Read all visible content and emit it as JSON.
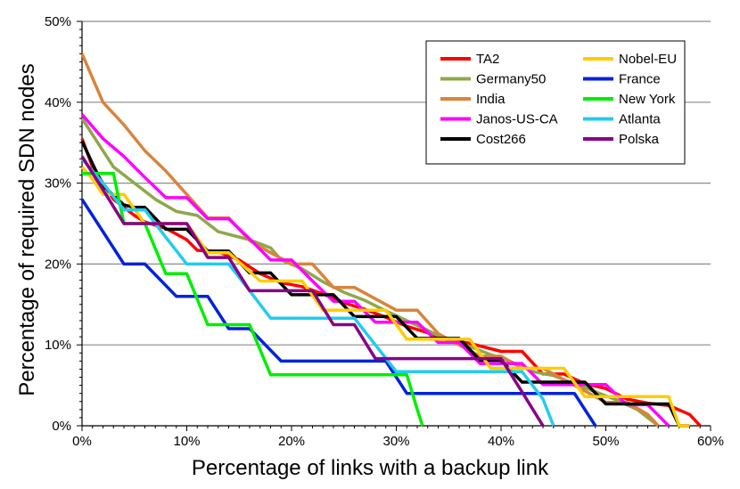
{
  "chart_data": {
    "type": "line",
    "xlabel": "Percentage of links with a backup link",
    "ylabel": "Percentage of required SDN nodes",
    "xlim": [
      0,
      60
    ],
    "ylim": [
      0,
      50
    ],
    "x_ticks": [
      "0%",
      "10%",
      "20%",
      "30%",
      "40%",
      "50%",
      "60%"
    ],
    "y_ticks": [
      "0%",
      "10%",
      "20%",
      "30%",
      "40%",
      "50%"
    ],
    "grid": "horizontal",
    "legend_position": "top-right",
    "series": [
      {
        "name": "TA2",
        "color": "#ff0000",
        "x": [
          0,
          1,
          2,
          3,
          4,
          5,
          6,
          8,
          10,
          11,
          13,
          15,
          17,
          19,
          21,
          23,
          25,
          27,
          29,
          31,
          33,
          35,
          37,
          40,
          42,
          44,
          46,
          48,
          50,
          52,
          54,
          56,
          58,
          59
        ],
        "y": [
          35.5,
          32,
          30,
          28,
          27,
          26,
          25.2,
          24.4,
          23,
          21.7,
          21.5,
          20.5,
          18.8,
          17.7,
          17.2,
          16.3,
          15.2,
          14.4,
          13.4,
          12.3,
          11.5,
          10.6,
          10.2,
          9.2,
          9.2,
          6.4,
          6.4,
          5.2,
          4.6,
          3.3,
          2.8,
          2.5,
          1.4,
          0
        ]
      },
      {
        "name": "Germany50",
        "color": "#8ea84a",
        "x": [
          0,
          2,
          3,
          5,
          7,
          9,
          11,
          13,
          16,
          18,
          19,
          21,
          23,
          25,
          27,
          29,
          31,
          33,
          35,
          37,
          39,
          41,
          43,
          45,
          47,
          49,
          51,
          53,
          54,
          55
        ],
        "y": [
          38,
          34,
          32,
          30,
          28,
          26.5,
          26,
          24,
          23,
          22,
          20.5,
          19.4,
          17.8,
          16.5,
          15.5,
          14.2,
          13,
          11.8,
          10.5,
          9.8,
          8.8,
          7.9,
          6.7,
          6.2,
          5.2,
          4.2,
          3.2,
          2,
          1,
          0
        ]
      },
      {
        "name": "India",
        "color": "#d9843b",
        "x": [
          0,
          2,
          4,
          6,
          8,
          10,
          12,
          14,
          16,
          18,
          20,
          22,
          24,
          26,
          28,
          30,
          32,
          34,
          36,
          38,
          40,
          42,
          44,
          46,
          48,
          50,
          52,
          54,
          55
        ],
        "y": [
          46,
          40,
          37.2,
          34,
          31.5,
          28.6,
          25.7,
          25.7,
          22.9,
          21.4,
          20,
          20,
          17.1,
          17.1,
          15.7,
          14.3,
          14.3,
          11.4,
          10,
          8.6,
          8.6,
          7.1,
          7.1,
          5.7,
          4.3,
          2.9,
          2.9,
          1.4,
          0
        ]
      },
      {
        "name": "Janos-US-CA",
        "color": "#ff00ff",
        "x": [
          0,
          2,
          4,
          6,
          8,
          10,
          12,
          14,
          16,
          18,
          20,
          22,
          24,
          26,
          28,
          30,
          32,
          34,
          36,
          38,
          40,
          42,
          44,
          46,
          48,
          50,
          52,
          54,
          55,
          56
        ],
        "y": [
          38.5,
          35.5,
          33.3,
          30.7,
          28.2,
          28.2,
          25.6,
          25.6,
          23.1,
          20.5,
          20.5,
          17.9,
          15.4,
          15.4,
          12.8,
          12.8,
          12.8,
          10.3,
          10.3,
          7.7,
          7.7,
          7.7,
          5.1,
          5.1,
          5.1,
          5.1,
          2.6,
          2.6,
          1.3,
          0
        ]
      },
      {
        "name": "Cost266",
        "color": "#000000",
        "x": [
          0,
          1,
          2,
          3,
          4,
          5,
          6,
          8,
          10,
          12,
          14,
          16,
          18,
          20,
          22,
          24,
          26,
          28,
          30,
          32,
          34,
          36,
          38,
          40,
          42,
          44,
          46,
          48,
          50,
          52,
          54,
          56,
          57,
          58
        ],
        "y": [
          35.2,
          32.4,
          29.7,
          28.5,
          27.3,
          27,
          27,
          24.3,
          24.3,
          21.6,
          21.6,
          18.9,
          18.9,
          16.2,
          16.2,
          16.2,
          13.5,
          13.5,
          13.5,
          10.8,
          10.8,
          10.8,
          8.1,
          8.1,
          5.4,
          5.4,
          5.4,
          5.4,
          2.7,
          2.7,
          2.7,
          2.7,
          0,
          0
        ]
      },
      {
        "name": "Nobel-EU",
        "color": "#ffcc00",
        "x": [
          0,
          1,
          2,
          4,
          6,
          8,
          10,
          12,
          14,
          17,
          19,
          21,
          23,
          25,
          27,
          29,
          31,
          33,
          35,
          37,
          39,
          41,
          44,
          46,
          48,
          50,
          52,
          54,
          56,
          57,
          58
        ],
        "y": [
          32,
          30.5,
          28.6,
          28.6,
          25,
          25,
          25,
          21.4,
          21.4,
          17.9,
          17.9,
          17.9,
          14.3,
          14.3,
          14.3,
          14.3,
          10.7,
          10.7,
          10.7,
          10.7,
          7.1,
          7.1,
          7.1,
          7.1,
          3.6,
          3.6,
          3.6,
          3.6,
          3.6,
          0,
          0
        ]
      },
      {
        "name": "France",
        "color": "#0022dd",
        "x": [
          0,
          2,
          4,
          6,
          9,
          12,
          14,
          16,
          19,
          21,
          23,
          25,
          27,
          29,
          31,
          33,
          35,
          37,
          39,
          41,
          43,
          45,
          47,
          49
        ],
        "y": [
          28,
          24,
          20,
          20,
          16,
          16,
          12,
          12,
          8,
          8,
          8,
          8,
          8,
          8,
          4,
          4,
          4,
          4,
          4,
          4,
          4,
          4,
          4,
          0
        ]
      },
      {
        "name": "New York",
        "color": "#00ee00",
        "x": [
          0,
          3,
          4,
          6,
          8,
          10,
          12,
          14,
          16,
          18,
          20,
          22,
          24,
          26,
          28,
          30,
          31,
          32,
          32.5
        ],
        "y": [
          31.2,
          31.2,
          25,
          25,
          18.8,
          18.8,
          12.5,
          12.5,
          12.5,
          6.3,
          6.3,
          6.3,
          6.3,
          6.3,
          6.3,
          6.3,
          6.3,
          2,
          0
        ]
      },
      {
        "name": "Atlanta",
        "color": "#22ccee",
        "x": [
          0,
          2,
          4,
          6,
          8,
          10,
          12,
          14,
          16,
          18,
          20,
          22,
          24,
          26,
          28,
          30,
          32,
          34,
          36,
          38,
          40,
          42,
          44,
          45
        ],
        "y": [
          33,
          30,
          26.7,
          26.7,
          23.3,
          20,
          20,
          20,
          16.7,
          13.3,
          13.3,
          13.3,
          13.3,
          13.3,
          10,
          6.7,
          6.7,
          6.7,
          6.7,
          6.7,
          6.7,
          6.7,
          3.3,
          0
        ]
      },
      {
        "name": "Polska",
        "color": "#880088",
        "x": [
          0,
          2,
          4,
          6,
          8,
          10,
          12,
          14,
          16,
          18,
          20,
          22,
          24,
          26,
          28,
          30,
          32,
          34,
          36,
          38,
          40,
          42,
          44
        ],
        "y": [
          33.3,
          29.2,
          25,
          25,
          25,
          25,
          20.8,
          20.8,
          16.7,
          16.7,
          16.7,
          16.7,
          12.5,
          12.5,
          8.3,
          8.3,
          8.3,
          8.3,
          8.3,
          8.3,
          8.3,
          4.2,
          0
        ]
      }
    ]
  }
}
